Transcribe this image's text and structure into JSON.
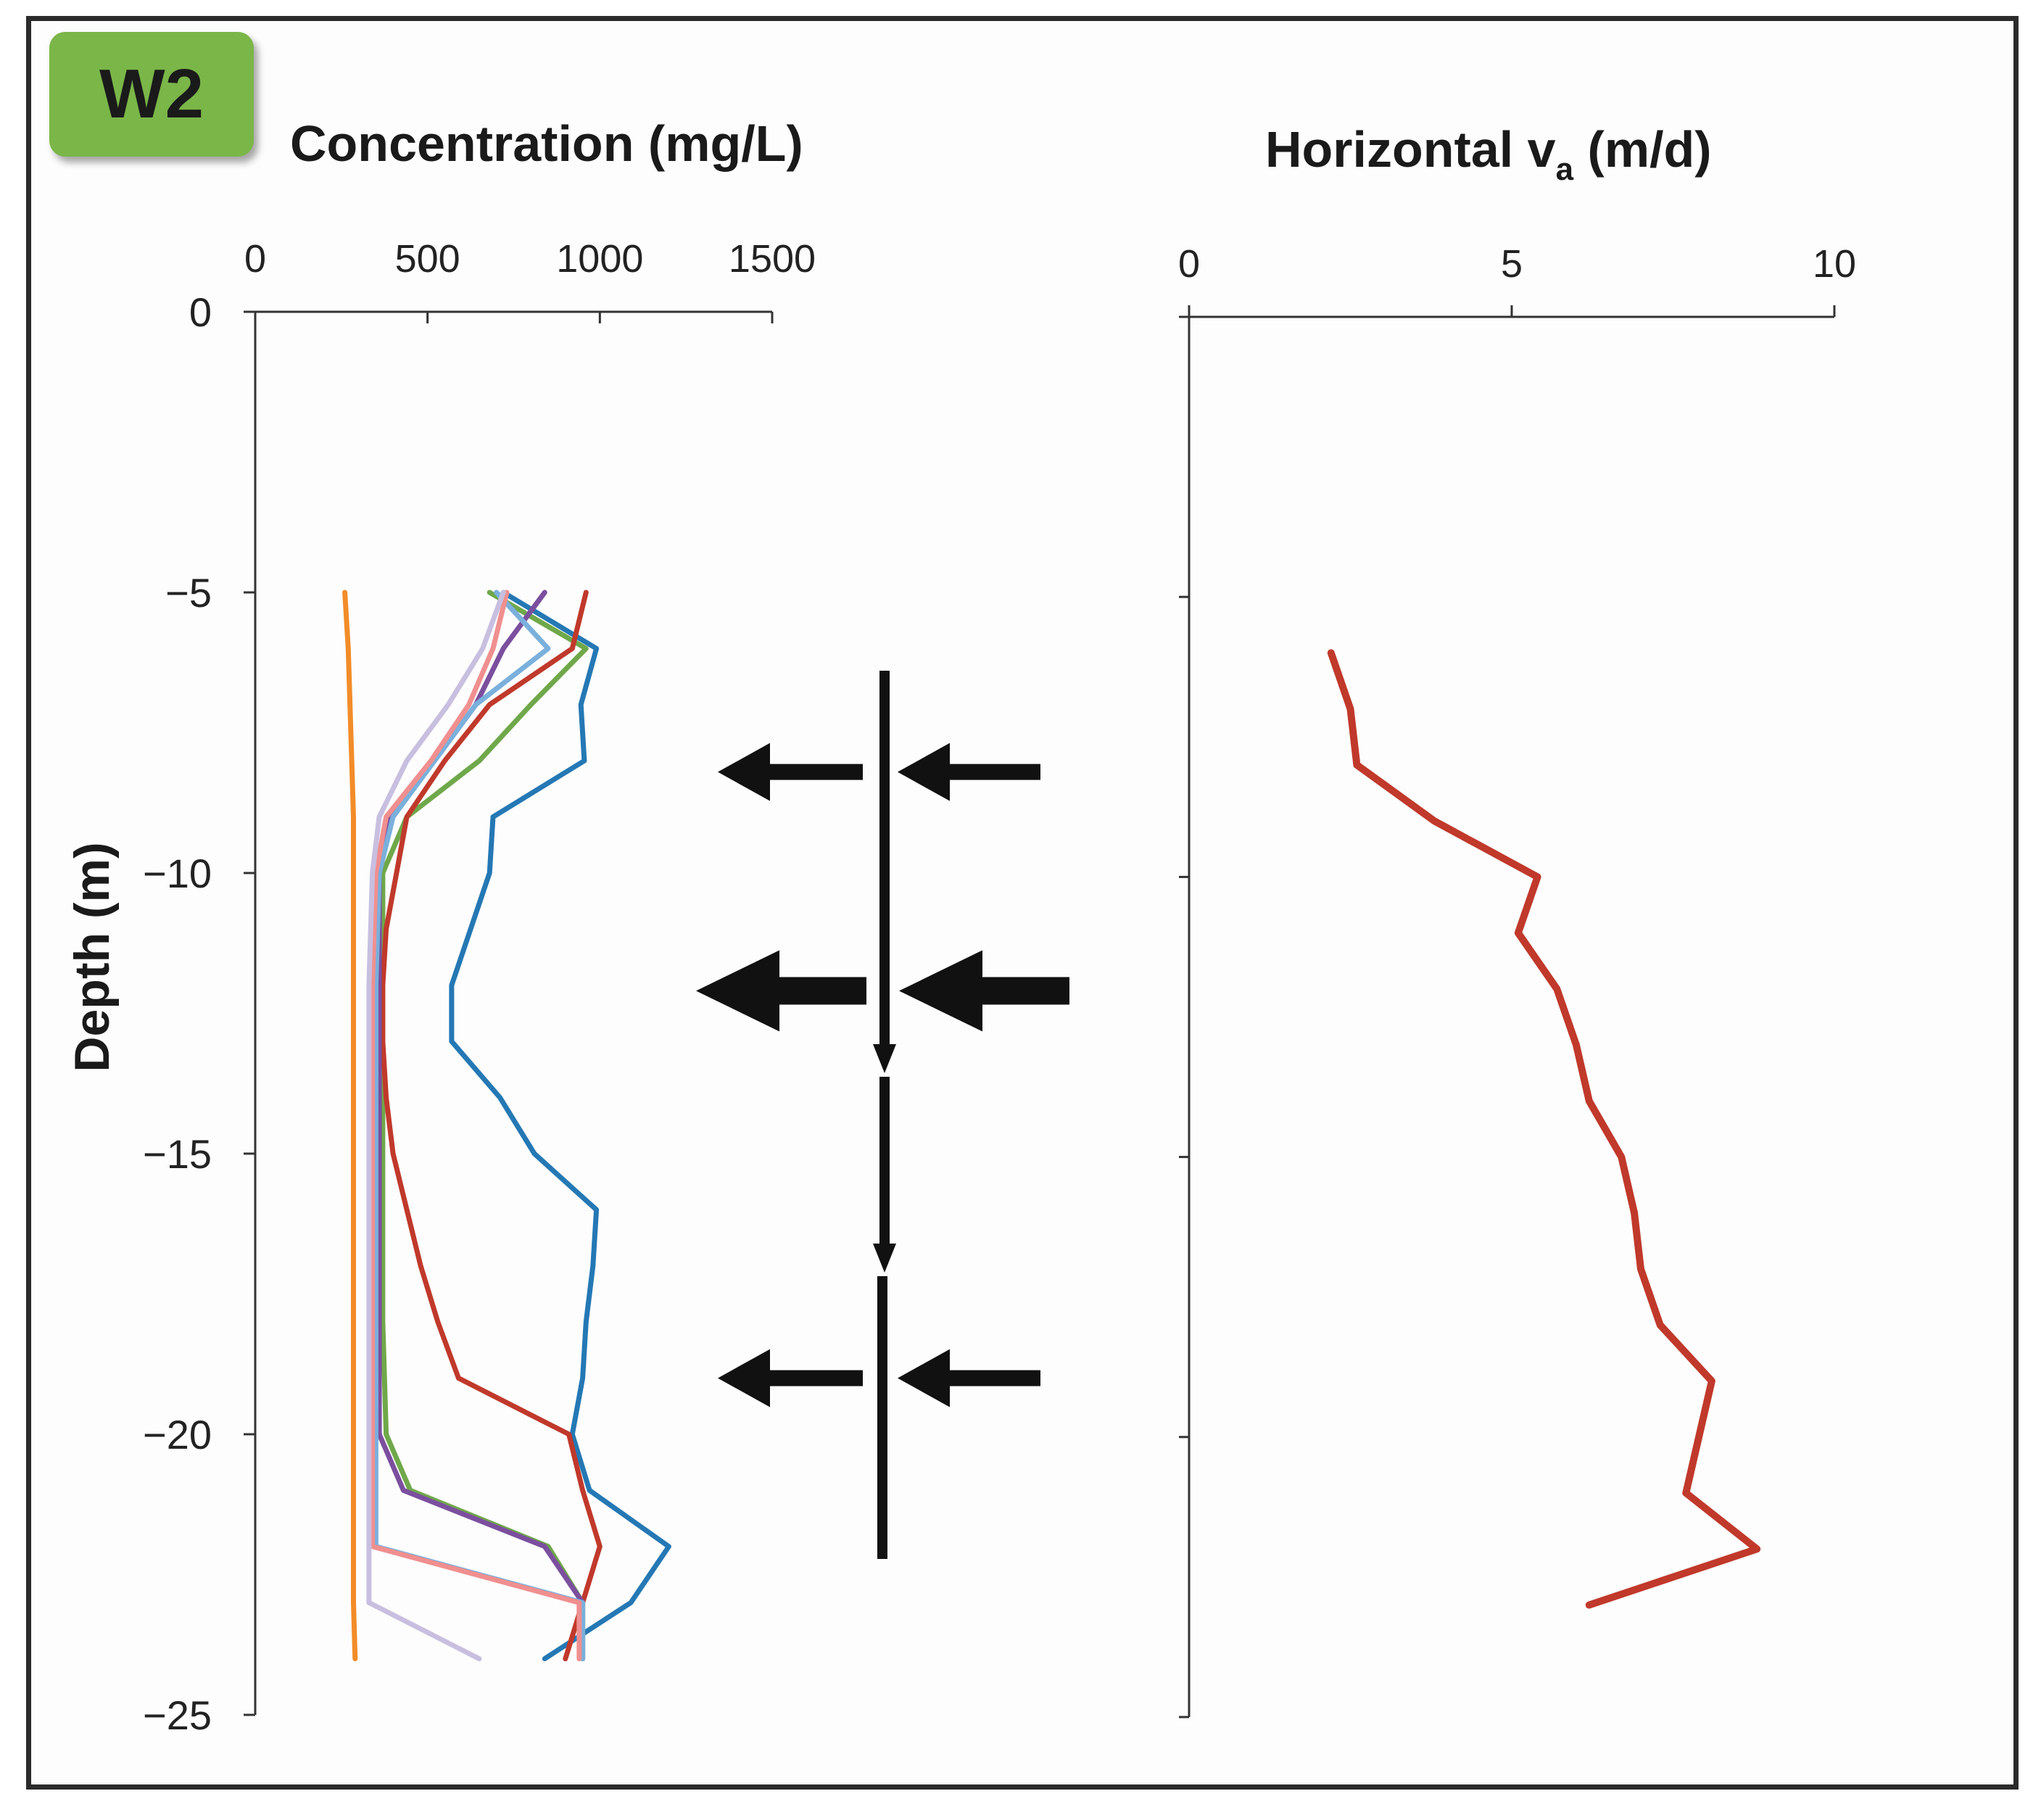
{
  "panel_label": "W2",
  "chart_data": [
    {
      "type": "line",
      "title": "Concentration (mg/L)",
      "xlabel": "Concentration (mg/L)",
      "ylabel": "Depth (m)",
      "xlim": [
        0,
        1500
      ],
      "ylim": [
        -25,
        0
      ],
      "x_ticks": [
        "0",
        "500",
        "1000",
        "1500"
      ],
      "y_ticks": [
        "0",
        "−5",
        "−10",
        "−15",
        "−20",
        "−25"
      ],
      "series": [
        {
          "name": "orange",
          "color": "#f28c28",
          "points": [
            [
              260,
              -5
            ],
            [
              270,
              -6
            ],
            [
              275,
              -7
            ],
            [
              280,
              -8
            ],
            [
              285,
              -9
            ],
            [
              285,
              -10
            ],
            [
              285,
              -12
            ],
            [
              285,
              -15
            ],
            [
              285,
              -20
            ],
            [
              285,
              -22
            ],
            [
              285,
              -23
            ],
            [
              290,
              -24
            ]
          ]
        },
        {
          "name": "blue",
          "color": "#2478b4",
          "points": [
            [
              720,
              -5
            ],
            [
              990,
              -6
            ],
            [
              945,
              -7
            ],
            [
              955,
              -8
            ],
            [
              690,
              -9
            ],
            [
              680,
              -10
            ],
            [
              570,
              -12
            ],
            [
              570,
              -13
            ],
            [
              710,
              -14
            ],
            [
              810,
              -15
            ],
            [
              990,
              -16
            ],
            [
              980,
              -17
            ],
            [
              960,
              -18
            ],
            [
              950,
              -19
            ],
            [
              920,
              -20
            ],
            [
              970,
              -21
            ],
            [
              1200,
              -22
            ],
            [
              1090,
              -23
            ],
            [
              840,
              -24
            ]
          ]
        },
        {
          "name": "green",
          "color": "#6fa84a",
          "points": [
            [
              680,
              -5
            ],
            [
              960,
              -6
            ],
            [
              800,
              -7
            ],
            [
              650,
              -8
            ],
            [
              440,
              -9
            ],
            [
              370,
              -10
            ],
            [
              370,
              -12
            ],
            [
              370,
              -15
            ],
            [
              370,
              -18
            ],
            [
              380,
              -20
            ],
            [
              450,
              -21
            ],
            [
              850,
              -22
            ],
            [
              950,
              -23
            ],
            [
              950,
              -24
            ]
          ]
        },
        {
          "name": "red",
          "color": "#c0392b",
          "points": [
            [
              960,
              -5
            ],
            [
              920,
              -6
            ],
            [
              680,
              -7
            ],
            [
              550,
              -8
            ],
            [
              440,
              -9
            ],
            [
              410,
              -10
            ],
            [
              380,
              -11
            ],
            [
              370,
              -12
            ],
            [
              370,
              -13
            ],
            [
              380,
              -14
            ],
            [
              400,
              -15
            ],
            [
              440,
              -16
            ],
            [
              480,
              -17
            ],
            [
              530,
              -18
            ],
            [
              590,
              -19
            ],
            [
              910,
              -20
            ],
            [
              950,
              -21
            ],
            [
              1000,
              -22
            ],
            [
              950,
              -23
            ],
            [
              900,
              -24
            ]
          ]
        },
        {
          "name": "purple",
          "color": "#7b4f9e",
          "points": [
            [
              840,
              -5
            ],
            [
              720,
              -6
            ],
            [
              640,
              -7
            ],
            [
              520,
              -8
            ],
            [
              390,
              -9
            ],
            [
              360,
              -10
            ],
            [
              360,
              -12
            ],
            [
              360,
              -15
            ],
            [
              360,
              -20
            ],
            [
              430,
              -21
            ],
            [
              840,
              -22
            ],
            [
              950,
              -23
            ],
            [
              950,
              -24
            ]
          ]
        },
        {
          "name": "light blue",
          "color": "#7ab0dc",
          "points": [
            [
              700,
              -5
            ],
            [
              850,
              -6
            ],
            [
              640,
              -7
            ],
            [
              520,
              -8
            ],
            [
              400,
              -9
            ],
            [
              360,
              -10
            ],
            [
              350,
              -12
            ],
            [
              350,
              -15
            ],
            [
              350,
              -20
            ],
            [
              350,
              -21
            ],
            [
              350,
              -22
            ],
            [
              950,
              -23
            ],
            [
              950,
              -24
            ]
          ]
        },
        {
          "name": "pink",
          "color": "#f08f8f",
          "points": [
            [
              730,
              -5
            ],
            [
              690,
              -6
            ],
            [
              620,
              -7
            ],
            [
              510,
              -8
            ],
            [
              380,
              -9
            ],
            [
              350,
              -10
            ],
            [
              340,
              -12
            ],
            [
              340,
              -15
            ],
            [
              340,
              -20
            ],
            [
              340,
              -21
            ],
            [
              340,
              -22
            ],
            [
              940,
              -23
            ],
            [
              940,
              -24
            ]
          ]
        },
        {
          "name": "lavender",
          "color": "#c8bfe0",
          "points": [
            [
              720,
              -5
            ],
            [
              660,
              -6
            ],
            [
              560,
              -7
            ],
            [
              440,
              -8
            ],
            [
              360,
              -9
            ],
            [
              340,
              -10
            ],
            [
              330,
              -12
            ],
            [
              330,
              -15
            ],
            [
              330,
              -20
            ],
            [
              330,
              -21
            ],
            [
              330,
              -22
            ],
            [
              330,
              -23
            ],
            [
              650,
              -24
            ]
          ]
        }
      ]
    },
    {
      "type": "line",
      "title": "Horizontal v",
      "title_sub": "a",
      "title_unit": " (m/d)",
      "xlabel": "Horizontal va (m/d)",
      "xlim": [
        0,
        10
      ],
      "ylim": [
        -25,
        0
      ],
      "x_ticks": [
        "0",
        "5",
        "10"
      ],
      "series": [
        {
          "name": "horizontal va",
          "color": "#c0392b",
          "points": [
            [
              2.2,
              -6
            ],
            [
              2.5,
              -7
            ],
            [
              2.6,
              -8
            ],
            [
              3.8,
              -9
            ],
            [
              5.4,
              -10
            ],
            [
              5.1,
              -11
            ],
            [
              5.7,
              -12
            ],
            [
              6.0,
              -13
            ],
            [
              6.2,
              -14
            ],
            [
              6.7,
              -15
            ],
            [
              6.9,
              -16
            ],
            [
              7.0,
              -17
            ],
            [
              7.3,
              -18
            ],
            [
              8.1,
              -19
            ],
            [
              7.9,
              -20
            ],
            [
              7.7,
              -21
            ],
            [
              8.8,
              -22
            ],
            [
              6.2,
              -23
            ]
          ]
        }
      ]
    }
  ],
  "arrows": [
    {
      "depth": -8.2,
      "weight": "normal"
    },
    {
      "depth": -12.1,
      "weight": "bold"
    },
    {
      "depth": -19.0,
      "weight": "normal"
    }
  ]
}
